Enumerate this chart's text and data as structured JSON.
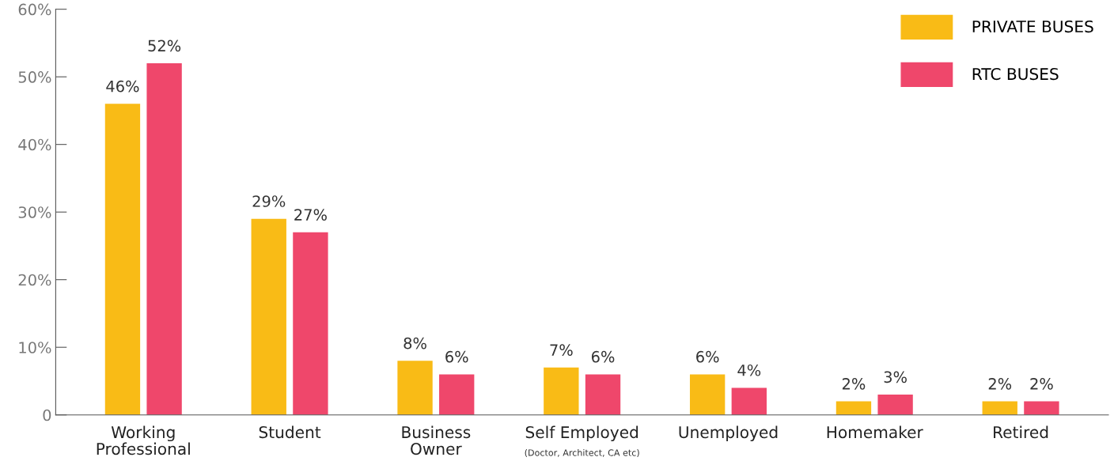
{
  "chart_data": {
    "type": "bar",
    "categories": [
      "Working\nProfessional",
      "Student",
      "Business\nOwner",
      "Self Employed",
      "Unemployed",
      "Homemaker",
      "Retired"
    ],
    "series": [
      {
        "name": "PRIVATE BUSES",
        "color": "#f9bb16",
        "values": [
          46,
          29,
          8,
          7,
          6,
          2,
          2
        ],
        "value_labels": [
          "46%",
          "29%",
          "8%",
          "7%",
          "6%",
          "2%",
          "2%"
        ]
      },
      {
        "name": "RTC BUSES",
        "color": "#ef476b",
        "values": [
          52,
          27,
          6,
          6,
          4,
          3,
          2
        ],
        "value_labels": [
          "52%",
          "27%",
          "6%",
          "6%",
          "4%",
          "3%",
          "2%"
        ]
      }
    ],
    "ylim": [
      0,
      60
    ],
    "yticks": [
      0,
      {
        "value": 10,
        "label": "10%"
      },
      {
        "value": 20,
        "label": "20%"
      },
      {
        "value": 30,
        "label": "30%"
      },
      {
        "value": 40,
        "label": "40%"
      },
      {
        "value": 50,
        "label": "50%"
      },
      {
        "value": 60,
        "label": "60%"
      }
    ],
    "annotations": [
      "(Doctor, Architect, CA etc)"
    ],
    "grid": false,
    "legend": "top right"
  }
}
